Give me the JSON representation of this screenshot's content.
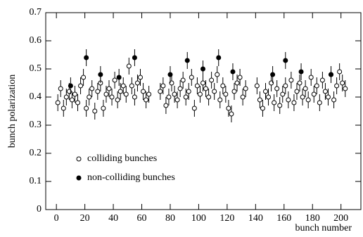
{
  "chart_data": {
    "type": "scatter",
    "x_label": "bunch number",
    "y_label": "bunch polarization",
    "xlim": [
      -7.5,
      214
    ],
    "ylim": [
      0,
      0.7
    ],
    "xticks": [
      0,
      20,
      40,
      60,
      80,
      100,
      120,
      140,
      160,
      180,
      200
    ],
    "yticks": [
      0,
      0.1,
      0.2,
      0.3,
      0.4,
      0.5,
      0.6,
      0.7
    ],
    "legend": "lower left",
    "series": [
      {
        "name": "colliding bunches",
        "color": "#000000",
        "marker": "open",
        "error": 0.03,
        "x": [
          1,
          3,
          5,
          7,
          9,
          11,
          13,
          15,
          17,
          19,
          21,
          23,
          25,
          27,
          29,
          31,
          33,
          35,
          37,
          39,
          41,
          43,
          45,
          47,
          49,
          51,
          53,
          55,
          57,
          59,
          61,
          63,
          65,
          73,
          75,
          77,
          79,
          81,
          83,
          85,
          87,
          89,
          91,
          93,
          95,
          97,
          99,
          101,
          103,
          105,
          107,
          109,
          111,
          113,
          115,
          117,
          119,
          121,
          123,
          125,
          127,
          129,
          131,
          133,
          141,
          143,
          145,
          147,
          149,
          151,
          153,
          155,
          157,
          159,
          161,
          163,
          165,
          167,
          169,
          171,
          173,
          175,
          177,
          179,
          181,
          183,
          185,
          187,
          189,
          191,
          193,
          195,
          197,
          199,
          201,
          203
        ],
        "values": [
          0.38,
          0.43,
          0.36,
          0.4,
          0.42,
          0.39,
          0.41,
          0.38,
          0.44,
          0.47,
          0.36,
          0.4,
          0.43,
          0.35,
          0.42,
          0.45,
          0.36,
          0.41,
          0.43,
          0.4,
          0.46,
          0.39,
          0.42,
          0.44,
          0.41,
          0.51,
          0.44,
          0.4,
          0.45,
          0.47,
          0.42,
          0.39,
          0.41,
          0.42,
          0.44,
          0.37,
          0.4,
          0.45,
          0.41,
          0.39,
          0.43,
          0.46,
          0.4,
          0.42,
          0.47,
          0.36,
          0.44,
          0.41,
          0.45,
          0.43,
          0.4,
          0.46,
          0.42,
          0.48,
          0.39,
          0.44,
          0.41,
          0.36,
          0.34,
          0.42,
          0.45,
          0.47,
          0.4,
          0.43,
          0.44,
          0.39,
          0.36,
          0.42,
          0.4,
          0.45,
          0.38,
          0.43,
          0.37,
          0.41,
          0.44,
          0.39,
          0.46,
          0.38,
          0.42,
          0.45,
          0.4,
          0.43,
          0.39,
          0.47,
          0.41,
          0.44,
          0.38,
          0.46,
          0.42,
          0.4,
          0.48,
          0.39,
          0.44,
          0.49,
          0.45,
          0.43
        ]
      },
      {
        "name": "non-colliding bunches",
        "color": "#000000",
        "marker": "filled",
        "error": 0.03,
        "x": [
          10,
          21,
          31,
          44,
          55,
          80,
          92,
          103,
          114,
          124,
          152,
          161,
          172,
          193
        ],
        "values": [
          0.44,
          0.54,
          0.48,
          0.47,
          0.54,
          0.48,
          0.53,
          0.5,
          0.54,
          0.49,
          0.48,
          0.53,
          0.49,
          0.48
        ]
      }
    ]
  }
}
